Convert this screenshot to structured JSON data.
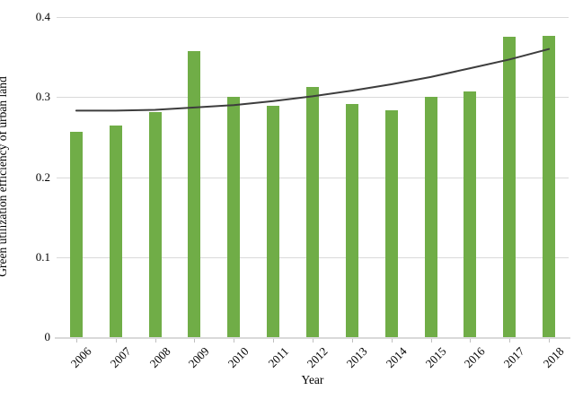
{
  "chart_data": {
    "type": "bar",
    "title": "",
    "xlabel": "Year",
    "ylabel": "Green utilization efficiency of urban land",
    "categories": [
      "2006",
      "2007",
      "2008",
      "2009",
      "2010",
      "2011",
      "2012",
      "2013",
      "2014",
      "2015",
      "2016",
      "2017",
      "2018"
    ],
    "series": [
      {
        "name": "Green utilization efficiency of urban land",
        "type": "bar",
        "color": "#70AD47",
        "values": [
          0.257,
          0.265,
          0.281,
          0.357,
          0.3,
          0.289,
          0.313,
          0.291,
          0.284,
          0.3,
          0.307,
          0.375,
          0.377
        ]
      },
      {
        "name": "Trend line",
        "type": "line",
        "color": "#3d3d3d",
        "values": [
          0.283,
          0.283,
          0.284,
          0.287,
          0.29,
          0.295,
          0.301,
          0.308,
          0.316,
          0.325,
          0.336,
          0.347,
          0.36
        ]
      }
    ],
    "ylim": [
      0,
      0.4
    ],
    "yticks": [
      "0",
      "0.1",
      "0.2",
      "0.3",
      "0.4"
    ],
    "grid": true,
    "legend": "none",
    "gridline_color": "#d9d9d9",
    "axis_line_color": "#d9d9d9",
    "tick_color": "#bfbfbf",
    "text_color": "#000000",
    "background_color": "#ffffff"
  }
}
